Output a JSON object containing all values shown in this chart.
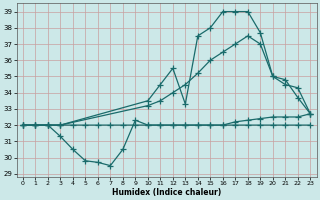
{
  "xlabel": "Humidex (Indice chaleur)",
  "bg_color": "#cce8e8",
  "grid_color": "#b0d0d0",
  "line_color": "#1a6b6b",
  "xlim": [
    -0.5,
    23.5
  ],
  "ylim": [
    28.8,
    39.5
  ],
  "yticks": [
    29,
    30,
    31,
    32,
    33,
    34,
    35,
    36,
    37,
    38,
    39
  ],
  "xticks": [
    0,
    1,
    2,
    3,
    4,
    5,
    6,
    7,
    8,
    9,
    10,
    11,
    12,
    13,
    14,
    15,
    16,
    17,
    18,
    19,
    20,
    21,
    22,
    23
  ],
  "line_flat_x": [
    0,
    1,
    2,
    3,
    4,
    5,
    6,
    7,
    8,
    9,
    10,
    11,
    12,
    13,
    14,
    15,
    16,
    17,
    18,
    19,
    20,
    21,
    22,
    23
  ],
  "line_flat_y": [
    32,
    32,
    32,
    32,
    32,
    32,
    32,
    32,
    32,
    32,
    32,
    32,
    32,
    32,
    32,
    32,
    32,
    32.2,
    32.3,
    32.4,
    32.5,
    32.5,
    32.5,
    32.7
  ],
  "line_diag_x": [
    0,
    1,
    2,
    3,
    10,
    11,
    12,
    13,
    14,
    15,
    16,
    17,
    18,
    19,
    20,
    21,
    22,
    23
  ],
  "line_diag_y": [
    32,
    32,
    32,
    32,
    33.2,
    33.5,
    34.0,
    34.5,
    35.2,
    36.0,
    36.5,
    37.0,
    37.5,
    37.0,
    35.0,
    34.5,
    34.3,
    32.7
  ],
  "line_peak_x": [
    0,
    1,
    2,
    3,
    10,
    11,
    12,
    13,
    14,
    15,
    16,
    17,
    18,
    19,
    20,
    21,
    22,
    23
  ],
  "line_peak_y": [
    32,
    32,
    32,
    32,
    33.5,
    34.5,
    35.5,
    33.3,
    37.5,
    38.0,
    39.0,
    39.0,
    39.0,
    37.7,
    35.0,
    34.8,
    33.7,
    32.7
  ],
  "line_dip_x": [
    0,
    1,
    2,
    3,
    4,
    5,
    6,
    7,
    8,
    9,
    10,
    11,
    12,
    13,
    14,
    15,
    16,
    17,
    18,
    19,
    20,
    21,
    22,
    23
  ],
  "line_dip_y": [
    32,
    32,
    32,
    31.3,
    30.5,
    29.8,
    29.7,
    29.5,
    30.5,
    32.3,
    32,
    32,
    32,
    32,
    32,
    32,
    32,
    32,
    32,
    32,
    32,
    32,
    32,
    32
  ]
}
